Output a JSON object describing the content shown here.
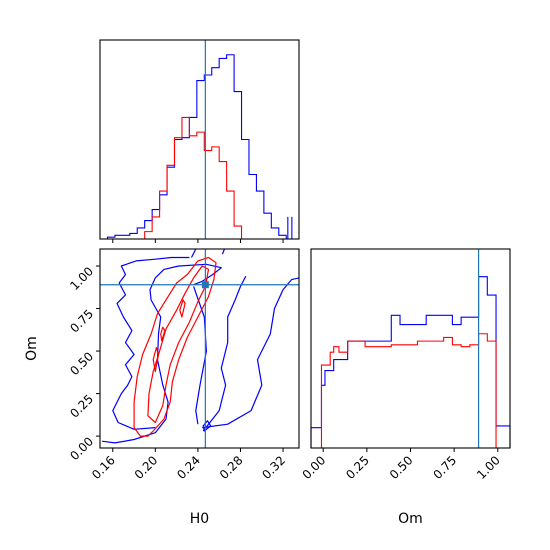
{
  "chart_data": {
    "type": "corner",
    "colors": {
      "blue": "#0000ff",
      "red": "#ff0000",
      "truth": "#1f77b4"
    },
    "truth": {
      "H0": 0.247,
      "Om": 0.89
    },
    "panels": [
      {
        "id": "hist-H0",
        "type": "step-histogram",
        "variable": "H0",
        "xlim": [
          0.148,
          0.335
        ],
        "ylim": [
          0,
          1.08
        ],
        "show_xtick_labels": false,
        "bin_edges": [
          0.148,
          0.155,
          0.162,
          0.169,
          0.176,
          0.183,
          0.19,
          0.197,
          0.204,
          0.211,
          0.218,
          0.225,
          0.232,
          0.239,
          0.246,
          0.253,
          0.26,
          0.267,
          0.274,
          0.281,
          0.288,
          0.295,
          0.302,
          0.309,
          0.316,
          0.323,
          0.33
        ],
        "series": [
          {
            "name": "blue",
            "color": "#0000ff",
            "counts": [
              0.0,
              0.01,
              0.02,
              0.02,
              0.03,
              0.06,
              0.1,
              0.16,
              0.24,
              0.39,
              0.54,
              0.55,
              0.66,
              0.86,
              0.89,
              0.93,
              0.98,
              1.0,
              0.8,
              0.54,
              0.35,
              0.26,
              0.14,
              0.06,
              0.02,
              0.0
            ]
          },
          {
            "name": "red",
            "color": "#ff0000",
            "counts": [
              0,
              0,
              0,
              0,
              0,
              0,
              0.04,
              0.12,
              0.26,
              0.4,
              0.55,
              0.66,
              0.56,
              0.58,
              0.48,
              0.5,
              0.42,
              0.26,
              0.07,
              0,
              0,
              0,
              0,
              0,
              0,
              0
            ]
          }
        ],
        "blue_tail": [
          0.3245,
          0.3283,
          0.06,
          0.12
        ]
      },
      {
        "id": "contour-H0-Om",
        "type": "contour",
        "xlim": [
          0.148,
          0.335
        ],
        "ylim": [
          -0.07,
          1.1
        ],
        "xlabel": "H0",
        "ylabel": "Om",
        "xticks": [
          0.16,
          0.2,
          0.24,
          0.28,
          0.32
        ],
        "xtick_labels": [
          "0.16",
          "0.20",
          "0.24",
          "0.28",
          "0.32"
        ],
        "yticks": [
          0.0,
          0.25,
          0.5,
          0.75,
          1.0
        ],
        "ytick_labels": [
          "0.00",
          "0.25",
          "0.50",
          "0.75",
          "1.00"
        ],
        "contours": [
          {
            "color": "#0000ff",
            "closed": false,
            "points": [
              [
                0.15,
                -0.03
              ],
              [
                0.162,
                -0.04
              ],
              [
                0.18,
                -0.02
              ],
              [
                0.2,
                0.02
              ],
              [
                0.21,
                0.1
              ],
              [
                0.212,
                0.2
              ],
              [
                0.207,
                0.3
              ],
              [
                0.202,
                0.45
              ],
              [
                0.203,
                0.6
              ],
              [
                0.205,
                0.7
              ],
              [
                0.196,
                0.8
              ],
              [
                0.195,
                0.86
              ],
              [
                0.2,
                0.93
              ],
              [
                0.208,
                0.98
              ],
              [
                0.222,
                1.0
              ],
              [
                0.248,
                1.01
              ],
              [
                0.262,
                0.99
              ],
              [
                0.254,
                0.95
              ],
              [
                0.244,
                0.91
              ],
              [
                0.236,
                0.89
              ]
            ]
          },
          {
            "color": "#0000ff",
            "closed": false,
            "points": [
              [
                0.232,
                1.05
              ],
              [
                0.215,
                1.05
              ],
              [
                0.2,
                1.04
              ],
              [
                0.182,
                1.03
              ],
              [
                0.168,
                1.0
              ],
              [
                0.172,
                0.95
              ],
              [
                0.166,
                0.9
              ],
              [
                0.172,
                0.83
              ],
              [
                0.164,
                0.78
              ],
              [
                0.17,
                0.7
              ],
              [
                0.178,
                0.62
              ],
              [
                0.172,
                0.55
              ],
              [
                0.18,
                0.48
              ],
              [
                0.172,
                0.42
              ],
              [
                0.178,
                0.35
              ],
              [
                0.174,
                0.3
              ],
              [
                0.168,
                0.25
              ],
              [
                0.16,
                0.15
              ],
              [
                0.165,
                0.08
              ],
              [
                0.18,
                0.04
              ],
              [
                0.2,
                0.05
              ]
            ]
          },
          {
            "color": "#0000ff",
            "closed": false,
            "points": [
              [
                0.234,
                1.05
              ],
              [
                0.238,
                1.1
              ]
            ]
          },
          {
            "color": "#0000ff",
            "closed": false,
            "points": [
              [
                0.263,
                1.07
              ],
              [
                0.265,
                1.1
              ]
            ]
          },
          {
            "color": "#0000ff",
            "closed": false,
            "points": [
              [
                0.244,
                0.05
              ],
              [
                0.268,
                0.07
              ],
              [
                0.29,
                0.15
              ],
              [
                0.3,
                0.3
              ],
              [
                0.296,
                0.45
              ],
              [
                0.308,
                0.6
              ],
              [
                0.312,
                0.75
              ],
              [
                0.32,
                0.86
              ],
              [
                0.328,
                0.92
              ],
              [
                0.335,
                0.93
              ]
            ]
          },
          {
            "color": "#0000ff",
            "closed": false,
            "points": [
              [
                0.245,
                0.03
              ],
              [
                0.26,
                0.15
              ],
              [
                0.266,
                0.3
              ],
              [
                0.262,
                0.4
              ],
              [
                0.268,
                0.55
              ],
              [
                0.268,
                0.7
              ],
              [
                0.275,
                0.8
              ],
              [
                0.28,
                0.88
              ],
              [
                0.285,
                0.94
              ]
            ]
          },
          {
            "color": "#0000ff",
            "closed": false,
            "points": [
              [
                0.236,
                0.88
              ],
              [
                0.246,
                0.7
              ],
              [
                0.248,
                0.5
              ],
              [
                0.242,
                0.3
              ],
              [
                0.238,
                0.15
              ],
              [
                0.24,
                0.07
              ]
            ]
          },
          {
            "color": "#0000ff",
            "closed": true,
            "points": [
              [
                0.246,
                0.03
              ],
              [
                0.252,
                0.06
              ],
              [
                0.249,
                0.09
              ],
              [
                0.245,
                0.06
              ]
            ]
          },
          {
            "color": "#ff0000",
            "closed": true,
            "points": [
              [
                0.193,
                0.0
              ],
              [
                0.198,
                0.03
              ],
              [
                0.208,
                0.1
              ],
              [
                0.214,
                0.2
              ],
              [
                0.216,
                0.32
              ],
              [
                0.222,
                0.45
              ],
              [
                0.23,
                0.58
              ],
              [
                0.24,
                0.7
              ],
              [
                0.25,
                0.82
              ],
              [
                0.255,
                0.92
              ],
              [
                0.257,
                1.02
              ],
              [
                0.25,
                1.05
              ],
              [
                0.24,
                1.03
              ],
              [
                0.23,
                0.95
              ],
              [
                0.22,
                0.9
              ],
              [
                0.212,
                0.82
              ],
              [
                0.202,
                0.72
              ],
              [
                0.196,
                0.6
              ],
              [
                0.188,
                0.48
              ],
              [
                0.183,
                0.35
              ],
              [
                0.18,
                0.2
              ],
              [
                0.18,
                0.05
              ],
              [
                0.186,
                0.0
              ]
            ]
          },
          {
            "color": "#ff0000",
            "closed": true,
            "points": [
              [
                0.2,
                0.08
              ],
              [
                0.207,
                0.18
              ],
              [
                0.21,
                0.3
              ],
              [
                0.214,
                0.42
              ],
              [
                0.222,
                0.55
              ],
              [
                0.232,
                0.67
              ],
              [
                0.24,
                0.79
              ],
              [
                0.247,
                0.88
              ],
              [
                0.25,
                0.98
              ],
              [
                0.244,
                1.0
              ],
              [
                0.236,
                0.93
              ],
              [
                0.228,
                0.84
              ],
              [
                0.22,
                0.74
              ],
              [
                0.21,
                0.63
              ],
              [
                0.204,
                0.5
              ],
              [
                0.198,
                0.38
              ],
              [
                0.194,
                0.25
              ],
              [
                0.193,
                0.12
              ]
            ]
          },
          {
            "color": "#ff0000",
            "closed": true,
            "points": [
              [
                0.2,
                0.38
              ],
              [
                0.203,
                0.48
              ],
              [
                0.201,
                0.52
              ],
              [
                0.198,
                0.45
              ]
            ]
          },
          {
            "color": "#ff0000",
            "closed": true,
            "points": [
              [
                0.206,
                0.56
              ],
              [
                0.209,
                0.62
              ],
              [
                0.207,
                0.64
              ],
              [
                0.205,
                0.6
              ]
            ]
          },
          {
            "color": "#ff0000",
            "closed": true,
            "points": [
              [
                0.225,
                0.7
              ],
              [
                0.228,
                0.78
              ],
              [
                0.226,
                0.8
              ],
              [
                0.223,
                0.74
              ]
            ]
          }
        ]
      },
      {
        "id": "hist-Om",
        "type": "step-histogram",
        "variable": "Om",
        "xlim": [
          -0.07,
          1.07
        ],
        "ylim": [
          0,
          1.08
        ],
        "xlabel": "Om",
        "xticks": [
          0.0,
          0.25,
          0.5,
          0.75,
          1.0
        ],
        "xtick_labels": [
          "0.00",
          "0.25",
          "0.50",
          "0.75",
          "1.00"
        ],
        "bin_edges": [
          -0.07,
          -0.01,
          0.01,
          0.04,
          0.06,
          0.09,
          0.14,
          0.19,
          0.24,
          0.29,
          0.34,
          0.39,
          0.44,
          0.49,
          0.54,
          0.59,
          0.64,
          0.69,
          0.74,
          0.79,
          0.84,
          0.89,
          0.94,
          0.99,
          1.07
        ],
        "series": [
          {
            "name": "blue",
            "color": "#0000ff",
            "counts": [
              0.11,
              0.34,
              0.42,
              0.42,
              0.48,
              0.48,
              0.58,
              0.58,
              0.58,
              0.58,
              0.58,
              0.72,
              0.67,
              0.67,
              0.67,
              0.72,
              0.72,
              0.72,
              0.67,
              0.71,
              0.71,
              0.93,
              0.83,
              0.12
            ]
          },
          {
            "name": "red",
            "color": "#ff0000",
            "counts": [
              0,
              0.45,
              0.45,
              0.52,
              0.55,
              0.52,
              0.58,
              0.58,
              0.55,
              0.55,
              0.55,
              0.56,
              0.56,
              0.56,
              0.58,
              0.58,
              0.58,
              0.6,
              0.56,
              0.55,
              0.56,
              0.62,
              0.58,
              0
            ]
          }
        ]
      }
    ]
  }
}
